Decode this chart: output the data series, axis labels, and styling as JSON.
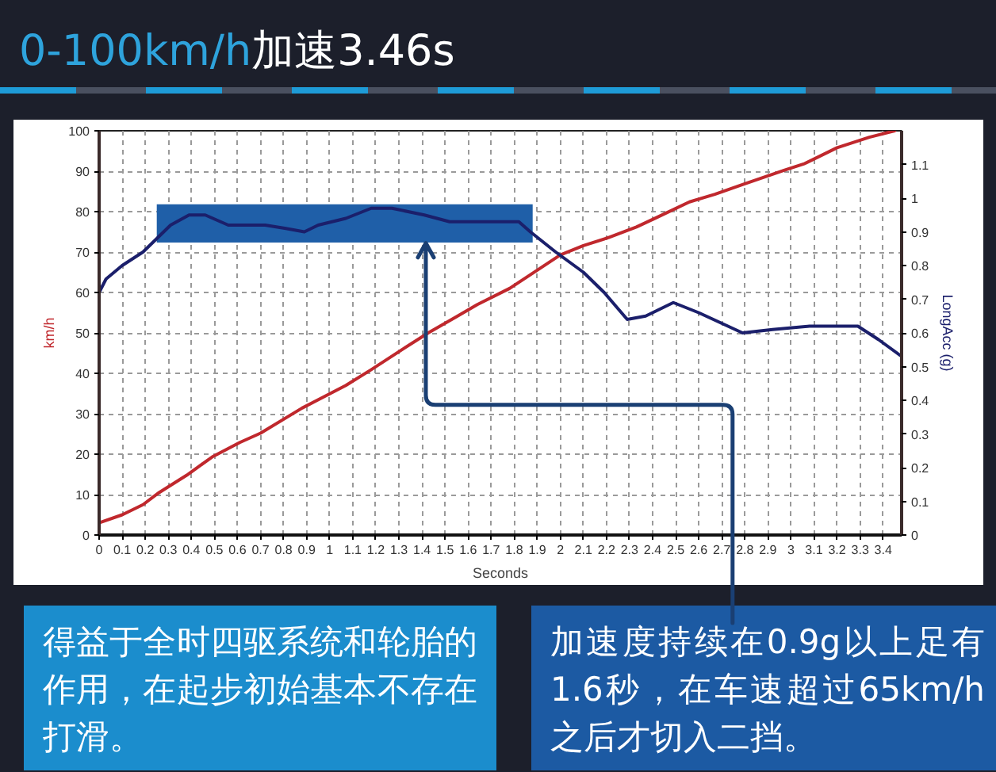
{
  "chart_data": {
    "type": "line",
    "title": "0-100km/h加速3.46s",
    "xlabel": "Seconds",
    "ylabel": "km/h",
    "y2label": "LongAcc (g)",
    "xlim": [
      0,
      3.48
    ],
    "ylim": [
      0,
      100
    ],
    "y2lim": [
      0,
      1.2
    ],
    "xticks": [
      0,
      0.1,
      0.2,
      0.3,
      0.4,
      0.5,
      0.6,
      0.7,
      0.8,
      0.9,
      1,
      1.1,
      1.2,
      1.3,
      1.4,
      1.5,
      1.6,
      1.7,
      1.8,
      1.9,
      2,
      2.1,
      2.2,
      2.3,
      2.4,
      2.5,
      2.6,
      2.7,
      2.8,
      2.9,
      3,
      3.1,
      3.2,
      3.3,
      3.4
    ],
    "yticks": [
      0,
      10,
      20,
      30,
      40,
      50,
      60,
      70,
      80,
      90,
      100
    ],
    "y2ticks": [
      0,
      0.1,
      0.2,
      0.3,
      0.4,
      0.5,
      0.6,
      0.7,
      0.8,
      0.9,
      1,
      1.1
    ],
    "grid": true,
    "series": [
      {
        "color": "#c0282d",
        "x": [
          0,
          0.1,
          0.19,
          0.26,
          0.38,
          0.49,
          0.61,
          0.7,
          0.88,
          1.07,
          1.18,
          1.32,
          1.43,
          1.55,
          1.64,
          1.78,
          1.87,
          2.0,
          2.1,
          2.21,
          2.33,
          2.42,
          2.56,
          2.67,
          2.79,
          2.97,
          3.06,
          3.2,
          3.34,
          3.45
        ],
        "values": [
          3,
          5,
          7.5,
          10.5,
          14.8,
          19.3,
          22.9,
          25.2,
          31.4,
          37,
          40.9,
          46.1,
          50.1,
          54,
          57,
          61,
          64.4,
          69.3,
          71.6,
          73.6,
          76.2,
          78.6,
          82.4,
          84.3,
          86.7,
          90.2,
          91.9,
          95.8,
          98.4,
          100
        ]
      },
      {
        "color": "#1b1f6b",
        "axis": "y2",
        "x": [
          0,
          0.03,
          0.1,
          0.19,
          0.25,
          0.31,
          0.39,
          0.46,
          0.56,
          0.65,
          0.72,
          0.81,
          0.89,
          0.95,
          1.07,
          1.18,
          1.27,
          1.41,
          1.52,
          1.64,
          1.78,
          1.82,
          1.87,
          1.98,
          2.1,
          2.19,
          2.29,
          2.37,
          2.49,
          2.6,
          2.79,
          2.92,
          3.08,
          3.29,
          3.38,
          3.48
        ],
        "values": [
          0.72,
          0.76,
          0.8,
          0.84,
          0.88,
          0.92,
          0.95,
          0.95,
          0.92,
          0.92,
          0.92,
          0.91,
          0.9,
          0.92,
          0.94,
          0.97,
          0.97,
          0.95,
          0.93,
          0.93,
          0.93,
          0.93,
          0.9,
          0.84,
          0.78,
          0.72,
          0.64,
          0.65,
          0.69,
          0.66,
          0.6,
          0.61,
          0.62,
          0.62,
          0.58,
          0.53
        ]
      }
    ],
    "bands": [
      {
        "axis": "x",
        "from": 0.25,
        "to": 1.88,
        "color": "#1f5fa8"
      }
    ],
    "annotations": [
      "得益于全时四驱系统和轮胎的作用，在起步初始基本不存在打滑。",
      {
        "text": "加速度持续在0.9g以上足有1.6秒，在车速超过65km/h之后才切入二挡。",
        "x": 1.42,
        "y": 72
      }
    ]
  }
}
